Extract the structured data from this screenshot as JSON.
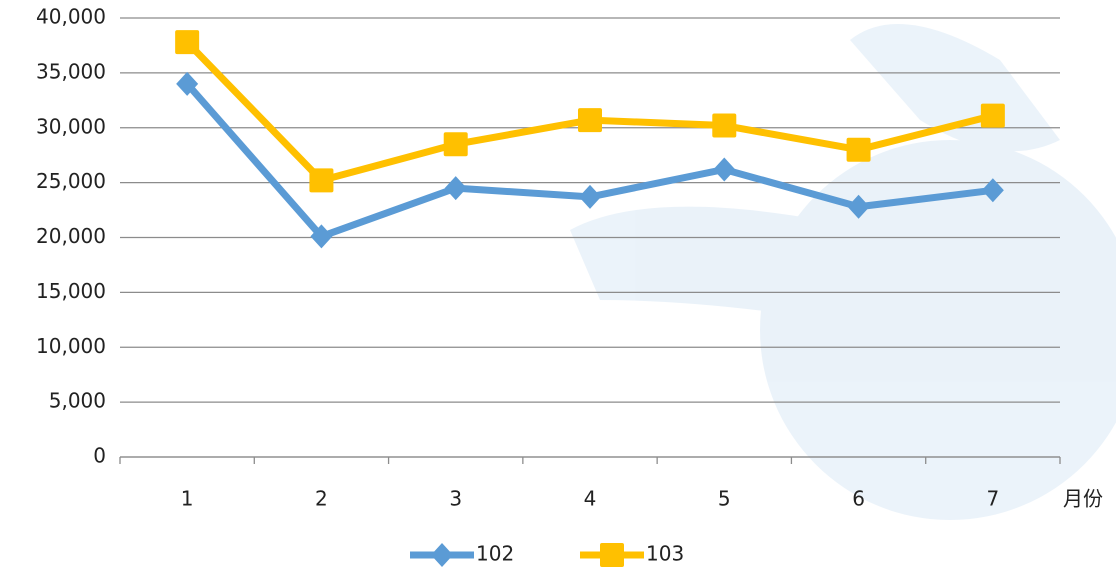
{
  "chart_data": {
    "type": "line",
    "categories": [
      "1",
      "2",
      "3",
      "4",
      "5",
      "6",
      "7"
    ],
    "x_label": "月份",
    "series": [
      {
        "name": "102",
        "color": "#5b9bd5",
        "marker": "diamond",
        "values": [
          34000,
          20100,
          24500,
          23700,
          26200,
          22800,
          24300
        ]
      },
      {
        "name": "103",
        "color": "#ffc000",
        "marker": "square",
        "values": [
          37800,
          25200,
          28500,
          30700,
          30200,
          28000,
          31100
        ]
      }
    ],
    "ylim": [
      0,
      40000
    ],
    "yticks": [
      0,
      {
        "value": 5000,
        "label": "5,000"
      },
      {
        "value": 10000,
        "label": "10,000"
      },
      {
        "value": 15000,
        "label": "15,000"
      },
      {
        "value": 20000,
        "label": "20,000"
      },
      {
        "value": 25000,
        "label": "25,000"
      },
      {
        "value": 30000,
        "label": "30,000"
      },
      {
        "value": 35000,
        "label": "35,000"
      },
      {
        "value": 40000,
        "label": "40,000"
      }
    ],
    "grid": true,
    "legend": "bottom"
  }
}
